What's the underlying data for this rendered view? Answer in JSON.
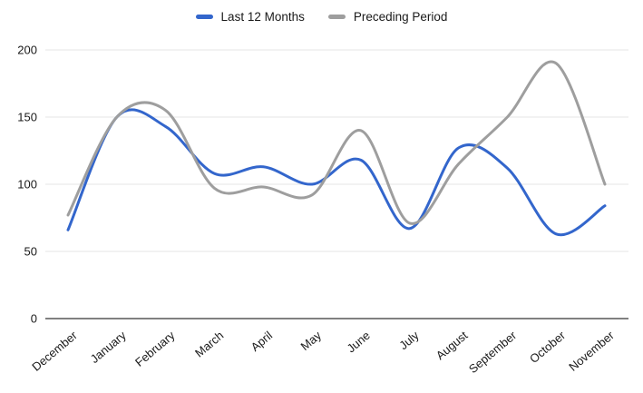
{
  "chart": {
    "background_color": "#ffffff",
    "label_color": "#1a1a1a",
    "gridline_color": "#e6e6e6",
    "axis_line_color": "#808080"
  },
  "chart_data": {
    "type": "line",
    "smooth": true,
    "grid": true,
    "title": "",
    "xlabel": "",
    "ylabel": "",
    "legend_position": "top",
    "categories": [
      "December",
      "January",
      "February",
      "March",
      "April",
      "May",
      "June",
      "July",
      "August",
      "September",
      "October",
      "November"
    ],
    "series": [
      {
        "name": "Last 12 Months",
        "color": "#3366cc",
        "values": [
          66,
          150,
          143,
          108,
          113,
          100,
          118,
          67,
          127,
          112,
          63,
          84
        ]
      },
      {
        "name": "Preceding Period",
        "color": "#9e9e9e",
        "values": [
          77,
          150,
          155,
          97,
          98,
          92,
          140,
          71,
          115,
          150,
          190,
          100
        ]
      }
    ],
    "ylim": [
      0,
      200
    ],
    "yticks": [
      0,
      50,
      100,
      150,
      200
    ]
  }
}
